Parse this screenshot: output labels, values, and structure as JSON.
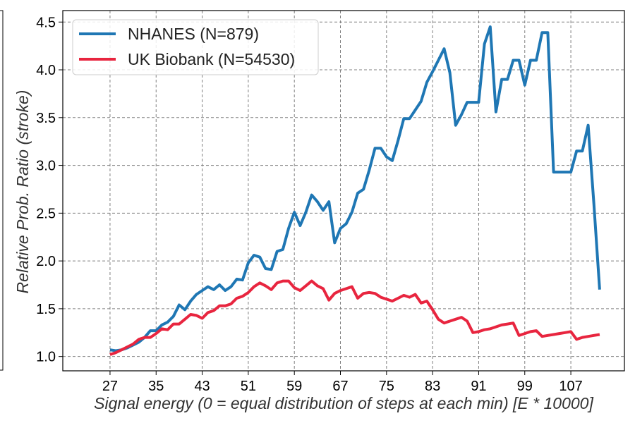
{
  "chart_data": {
    "type": "line",
    "title": "",
    "xlabel": "Signal energy (0 = equal distribution of steps at each min) [E * 10000]",
    "ylabel": "Relative Prob. Ratio (stroke)",
    "xlim": [
      18.8,
      116.3
    ],
    "ylim": [
      0.85,
      4.62
    ],
    "xticks": [
      27,
      35,
      43,
      51,
      59,
      67,
      75,
      83,
      91,
      99,
      107
    ],
    "yticks": [
      1.0,
      1.5,
      2.0,
      2.5,
      3.0,
      3.5,
      4.0,
      4.5
    ],
    "grid": true,
    "legend_position": "top-left",
    "series": [
      {
        "name": "NHANES (N=879)",
        "color": "#1f77b4",
        "x": [
          27,
          28,
          29,
          30,
          31,
          32,
          33,
          34,
          35,
          36,
          37,
          38,
          39,
          40,
          41,
          42,
          43,
          44,
          45,
          46,
          47,
          48,
          49,
          50,
          51,
          52,
          53,
          54,
          55,
          56,
          57,
          58,
          59,
          60,
          61,
          62,
          63,
          64,
          65,
          66,
          67,
          68,
          69,
          70,
          71,
          72,
          73,
          74,
          75,
          76,
          77,
          78,
          79,
          80,
          81,
          82,
          83,
          84,
          85,
          86,
          87,
          88,
          89,
          90,
          91,
          92,
          93,
          94,
          95,
          96,
          97,
          98,
          99,
          100,
          101,
          102,
          103,
          104,
          105,
          106,
          107,
          108,
          109,
          110,
          111,
          112
        ],
        "y": [
          1.07,
          1.06,
          1.07,
          1.09,
          1.12,
          1.15,
          1.2,
          1.27,
          1.27,
          1.33,
          1.36,
          1.42,
          1.54,
          1.49,
          1.58,
          1.65,
          1.69,
          1.73,
          1.7,
          1.75,
          1.69,
          1.73,
          1.81,
          1.8,
          1.98,
          2.06,
          2.04,
          1.92,
          1.91,
          2.1,
          2.12,
          2.34,
          2.51,
          2.37,
          2.51,
          2.69,
          2.62,
          2.53,
          2.62,
          2.19,
          2.34,
          2.39,
          2.51,
          2.71,
          2.75,
          2.95,
          3.18,
          3.18,
          3.09,
          3.05,
          3.26,
          3.49,
          3.49,
          3.58,
          3.67,
          3.87,
          3.98,
          4.1,
          4.22,
          3.97,
          3.42,
          3.53,
          3.66,
          3.66,
          3.66,
          4.27,
          4.45,
          3.56,
          3.9,
          3.9,
          4.1,
          4.1,
          3.84,
          4.1,
          4.1,
          4.39,
          4.39,
          2.93,
          2.93,
          2.93,
          2.93,
          3.15,
          3.15,
          3.42,
          2.6,
          1.7
        ]
      },
      {
        "name": "UK Biobank (N=54530)",
        "color": "#e8253f",
        "x": [
          27,
          28,
          29,
          30,
          31,
          32,
          33,
          34,
          35,
          36,
          37,
          38,
          39,
          40,
          41,
          42,
          43,
          44,
          45,
          46,
          47,
          48,
          49,
          50,
          51,
          52,
          53,
          54,
          55,
          56,
          57,
          58,
          59,
          60,
          61,
          62,
          63,
          64,
          65,
          66,
          67,
          68,
          69,
          70,
          71,
          72,
          73,
          74,
          75,
          76,
          77,
          78,
          79,
          80,
          81,
          82,
          83,
          84,
          85,
          86,
          87,
          88,
          89,
          90,
          91,
          92,
          93,
          94,
          95,
          96,
          97,
          98,
          99,
          100,
          101,
          102,
          103,
          104,
          105,
          106,
          107,
          108,
          109,
          110,
          111,
          112
        ],
        "y": [
          1.02,
          1.04,
          1.07,
          1.1,
          1.13,
          1.18,
          1.2,
          1.2,
          1.24,
          1.29,
          1.28,
          1.34,
          1.34,
          1.39,
          1.44,
          1.43,
          1.4,
          1.46,
          1.48,
          1.53,
          1.53,
          1.55,
          1.61,
          1.63,
          1.67,
          1.73,
          1.77,
          1.74,
          1.7,
          1.77,
          1.79,
          1.79,
          1.72,
          1.69,
          1.74,
          1.79,
          1.74,
          1.71,
          1.59,
          1.66,
          1.69,
          1.71,
          1.73,
          1.61,
          1.66,
          1.67,
          1.66,
          1.62,
          1.6,
          1.58,
          1.61,
          1.64,
          1.62,
          1.65,
          1.56,
          1.58,
          1.49,
          1.39,
          1.35,
          1.37,
          1.39,
          1.41,
          1.37,
          1.25,
          1.26,
          1.28,
          1.29,
          1.31,
          1.33,
          1.34,
          1.35,
          1.22,
          1.24,
          1.26,
          1.27,
          1.21,
          1.22,
          1.23,
          1.24,
          1.25,
          1.26,
          1.18,
          1.2,
          1.21,
          1.22,
          1.23
        ]
      }
    ]
  }
}
